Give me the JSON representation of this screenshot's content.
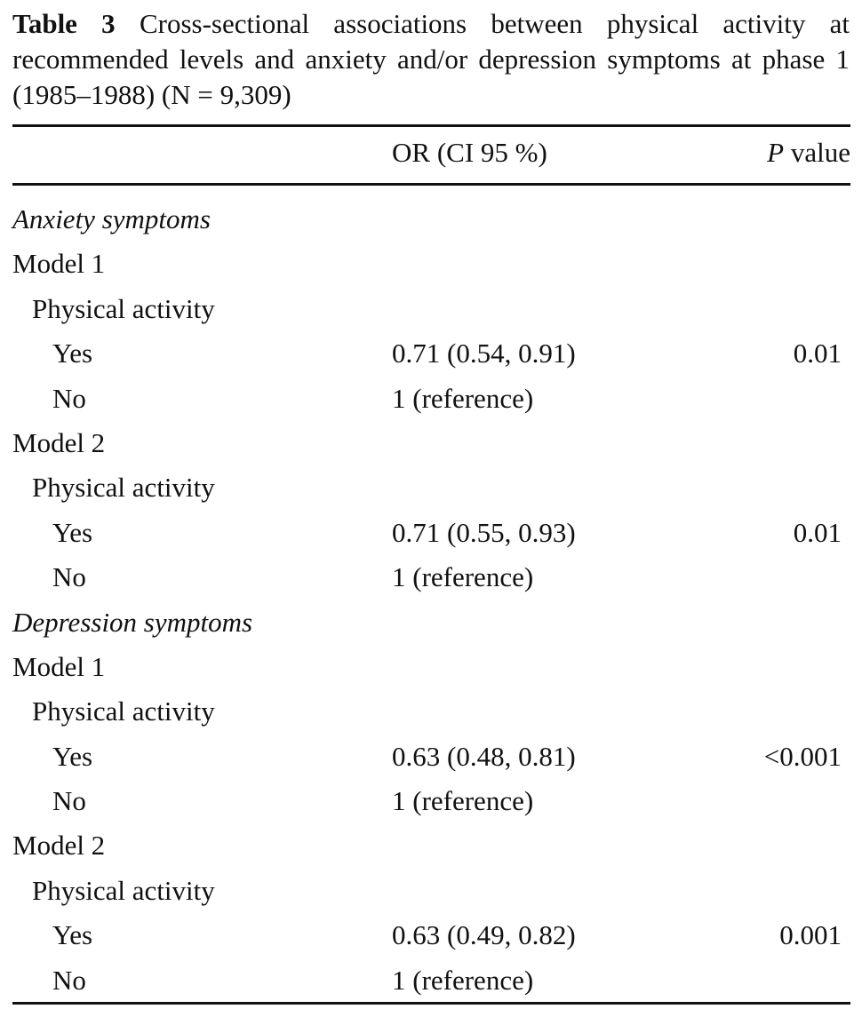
{
  "caption": {
    "label": "Table 3",
    "text": "Cross-sectional associations between physical activity at recommended levels and anxiety and/or depression symptoms at phase 1 (1985–1988) (N = 9,309)"
  },
  "header": {
    "or_label": "OR (CI 95 %)",
    "p_label_italic": "P",
    "p_label_rest": " value"
  },
  "rows": [
    {
      "label": "Anxiety symptoms",
      "or": "",
      "p": ""
    },
    {
      "label": "Model 1",
      "or": "",
      "p": ""
    },
    {
      "label": "Physical activity",
      "or": "",
      "p": ""
    },
    {
      "label": "Yes",
      "or": "0.71 (0.54, 0.91)",
      "p": "0.01"
    },
    {
      "label": "No",
      "or": "1 (reference)",
      "p": ""
    },
    {
      "label": "Model 2",
      "or": "",
      "p": ""
    },
    {
      "label": "Physical activity",
      "or": "",
      "p": ""
    },
    {
      "label": "Yes",
      "or": "0.71 (0.55, 0.93)",
      "p": "0.01"
    },
    {
      "label": "No",
      "or": "1 (reference)",
      "p": ""
    },
    {
      "label": "Depression symptoms",
      "or": "",
      "p": ""
    },
    {
      "label": "Model 1",
      "or": "",
      "p": ""
    },
    {
      "label": "Physical activity",
      "or": "",
      "p": ""
    },
    {
      "label": "Yes",
      "or": "0.63 (0.48, 0.81)",
      "p": "<0.001"
    },
    {
      "label": "No",
      "or": "1 (reference)",
      "p": ""
    },
    {
      "label": "Model 2",
      "or": "",
      "p": ""
    },
    {
      "label": "Physical activity",
      "or": "",
      "p": ""
    },
    {
      "label": "Yes",
      "or": "0.63 (0.49, 0.82)",
      "p": "0.001"
    },
    {
      "label": "No",
      "or": "1 (reference)",
      "p": ""
    }
  ]
}
